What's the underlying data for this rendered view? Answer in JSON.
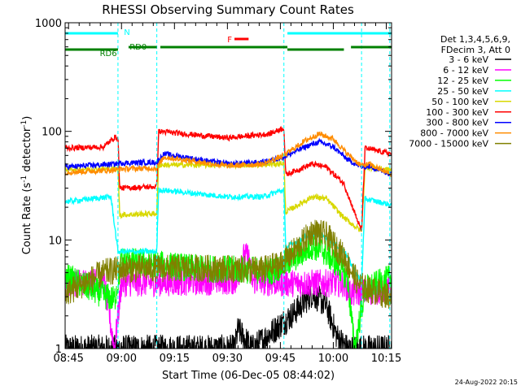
{
  "chart_data": {
    "type": "line",
    "title": "RHESSI Observing Summary Count Rates",
    "xlabel": "Start Time (06-Dec-05 08:44:02)",
    "ylabel_main": "Count Rate (s",
    "ylabel_sup1": "-1",
    "ylabel_mid": " detector",
    "ylabel_sup2": "-1",
    "ylabel_end": ")",
    "x_tick_labels": [
      "08:45",
      "09:00",
      "09:15",
      "09:30",
      "09:45",
      "10:00",
      "10:15"
    ],
    "x_tick_minutes": [
      45,
      60,
      75,
      90,
      105,
      120,
      135
    ],
    "x_range_minutes": [
      44.03,
      136.5
    ],
    "y_scale": "log",
    "ylim": [
      1,
      1000
    ],
    "y_tick_labels": [
      "1",
      "10",
      "100",
      "1000"
    ],
    "y_tick_values": [
      1,
      10,
      100,
      1000
    ],
    "legend_header": [
      "Det 1,3,4,5,6,9,",
      "FDecim 3, Att 0"
    ],
    "legend_entries": [
      {
        "label": "3 - 6 keV",
        "color": "#000000"
      },
      {
        "label": "6 - 12 keV",
        "color": "#ff00ff"
      },
      {
        "label": "12 - 25 keV",
        "color": "#00ff00"
      },
      {
        "label": "25 - 50 keV",
        "color": "#00ffff"
      },
      {
        "label": "50 - 100 keV",
        "color": "#d8d800"
      },
      {
        "label": "100 - 300 keV",
        "color": "#ff0000"
      },
      {
        "label": "300 - 800 keV",
        "color": "#0000ff"
      },
      {
        "label": "800 - 7000 keV",
        "color": "#ff8c00"
      },
      {
        "label": "7000 - 15000 keV",
        "color": "#808000"
      }
    ],
    "annotations": {
      "N": {
        "label": "N",
        "color": "#00ffff",
        "segments": [
          [
            44.03,
            59
          ],
          [
            107,
            136.5
          ]
        ]
      },
      "RD0": {
        "label": "RD0",
        "color": "#008000",
        "segments": [
          [
            62,
            70
          ],
          [
            71,
            107
          ],
          [
            125,
            136.5
          ]
        ]
      },
      "RD6": {
        "label": "RD6",
        "color": "#008000",
        "segments": [
          [
            44.03,
            59
          ],
          [
            107,
            123
          ]
        ]
      },
      "F": {
        "label": "F",
        "color": "#ff0000",
        "segments": [
          [
            92,
            96
          ]
        ]
      }
    },
    "night_boundaries_minutes": [
      59,
      70,
      106,
      128,
      136
    ],
    "series_profiles": [
      {
        "name": "3 - 6 keV",
        "color": "#000000",
        "points": [
          [
            44.03,
            1.0
          ],
          [
            92,
            1.0
          ],
          [
            93,
            1.5
          ],
          [
            97,
            1.0
          ],
          [
            108,
            2.0
          ],
          [
            114,
            3.2
          ],
          [
            118,
            2.5
          ],
          [
            121,
            1.3
          ],
          [
            124,
            1.0
          ],
          [
            136.5,
            1.0
          ]
        ]
      },
      {
        "name": "6 - 12 keV",
        "color": "#ff00ff",
        "points": [
          [
            44.03,
            4.0
          ],
          [
            55,
            4.2
          ],
          [
            58,
            1.0
          ],
          [
            60,
            4.0
          ],
          [
            93,
            4.2
          ],
          [
            94,
            7.0
          ],
          [
            96,
            7.0
          ],
          [
            97,
            4.2
          ],
          [
            106,
            4.0
          ],
          [
            123,
            4.0
          ],
          [
            125,
            3.2
          ],
          [
            136.5,
            3.5
          ]
        ]
      },
      {
        "name": "12 - 25 keV",
        "color": "#00ff00",
        "points": [
          [
            44.03,
            4.6
          ],
          [
            58,
            2.8
          ],
          [
            59,
            4.0
          ],
          [
            60,
            6.5
          ],
          [
            80,
            5.5
          ],
          [
            103,
            5.2
          ],
          [
            109,
            6.8
          ],
          [
            114,
            8.8
          ],
          [
            117,
            8.0
          ],
          [
            121,
            6.0
          ],
          [
            124,
            4.5
          ],
          [
            126,
            1.0
          ],
          [
            129,
            3.5
          ],
          [
            136.5,
            4.5
          ]
        ]
      },
      {
        "name": "25 - 50 keV",
        "color": "#00ffff",
        "points": [
          [
            44.03,
            22.5
          ],
          [
            57,
            25
          ],
          [
            59,
            7.8
          ],
          [
            70,
            7.8
          ],
          [
            70.5,
            29
          ],
          [
            90,
            25
          ],
          [
            100,
            25
          ],
          [
            106,
            29
          ],
          [
            106.5,
            8.5
          ],
          [
            114,
            11.5
          ],
          [
            117,
            11
          ],
          [
            123,
            8
          ],
          [
            128,
            4
          ],
          [
            129,
            24
          ],
          [
            136.5,
            21
          ]
        ]
      },
      {
        "name": "50 - 100 keV",
        "color": "#d8d800",
        "points": [
          [
            44.03,
            45
          ],
          [
            59,
            45
          ],
          [
            59.5,
            17
          ],
          [
            70,
            17.5
          ],
          [
            70.5,
            49
          ],
          [
            100,
            49
          ],
          [
            106,
            51
          ],
          [
            106.5,
            18
          ],
          [
            114,
            25
          ],
          [
            118,
            24
          ],
          [
            123,
            16
          ],
          [
            128,
            12
          ],
          [
            129,
            47
          ],
          [
            136.5,
            44
          ]
        ]
      },
      {
        "name": "100 - 300 keV",
        "color": "#ff0000",
        "points": [
          [
            44.03,
            70
          ],
          [
            55,
            72
          ],
          [
            58,
            88
          ],
          [
            59,
            88
          ],
          [
            59.5,
            30
          ],
          [
            70,
            31
          ],
          [
            70.5,
            100
          ],
          [
            90,
            87
          ],
          [
            102,
            95
          ],
          [
            106,
            108
          ],
          [
            106.5,
            40
          ],
          [
            114,
            50
          ],
          [
            118,
            47
          ],
          [
            123,
            33
          ],
          [
            128,
            12
          ],
          [
            129,
            70
          ],
          [
            136.5,
            62
          ]
        ]
      },
      {
        "name": "300 - 800 keV",
        "color": "#0000ff",
        "points": [
          [
            44.03,
            47
          ],
          [
            58,
            50
          ],
          [
            59.5,
            51
          ],
          [
            70,
            52
          ],
          [
            72,
            62
          ],
          [
            90,
            50
          ],
          [
            100,
            52
          ],
          [
            106,
            58
          ],
          [
            112,
            72
          ],
          [
            116,
            80
          ],
          [
            120,
            72
          ],
          [
            124,
            55
          ],
          [
            128,
            47
          ],
          [
            130,
            48
          ],
          [
            136.5,
            40
          ]
        ]
      },
      {
        "name": "800 - 7000 keV",
        "color": "#ff8c00",
        "points": [
          [
            44.03,
            42
          ],
          [
            58,
            44
          ],
          [
            59.5,
            45
          ],
          [
            70,
            46
          ],
          [
            72,
            58
          ],
          [
            90,
            48
          ],
          [
            100,
            50
          ],
          [
            106,
            60
          ],
          [
            112,
            82
          ],
          [
            116,
            95
          ],
          [
            120,
            85
          ],
          [
            124,
            62
          ],
          [
            128,
            48
          ],
          [
            130,
            50
          ],
          [
            136.5,
            40
          ]
        ]
      },
      {
        "name": "7000 - 15000 keV",
        "color": "#808000",
        "points": [
          [
            44.03,
            3.2
          ],
          [
            55,
            5.0
          ],
          [
            60,
            5.4
          ],
          [
            80,
            5.5
          ],
          [
            100,
            5.3
          ],
          [
            105,
            6.0
          ],
          [
            110,
            8.5
          ],
          [
            114,
            12
          ],
          [
            118,
            11
          ],
          [
            123,
            7
          ],
          [
            127,
            4
          ],
          [
            129,
            3.6
          ],
          [
            136.5,
            3.0
          ]
        ]
      }
    ]
  },
  "timestamp": "24-Aug-2022 20:15"
}
